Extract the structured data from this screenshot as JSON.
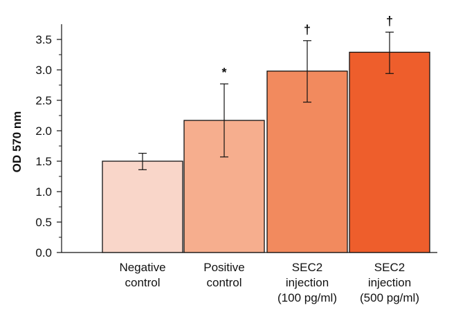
{
  "chart_data": {
    "type": "bar",
    "title": "",
    "xlabel": "",
    "ylabel": "OD 570 nm",
    "ylim": [
      0,
      3.75
    ],
    "yticks": [
      "0.0",
      "0.5",
      "1.0",
      "1.5",
      "2.0",
      "2.5",
      "3.0",
      "3.5"
    ],
    "grid": false,
    "legend": "none",
    "categories": [
      [
        "Negative",
        "control"
      ],
      [
        "Positive",
        "control"
      ],
      [
        "SEC2",
        "injection",
        "(100 pg/ml)"
      ],
      [
        "SEC2",
        "injection",
        "(500 pg/ml)"
      ]
    ],
    "values": [
      1.5,
      2.17,
      2.98,
      3.29
    ],
    "error_low": [
      1.36,
      1.57,
      2.47,
      2.94
    ],
    "error_high": [
      1.63,
      2.77,
      3.48,
      3.62
    ],
    "significance": [
      "",
      "*",
      "†",
      "†"
    ],
    "colors": [
      "#F9D6C9",
      "#F6AE8E",
      "#F28A5E",
      "#EE5E2C"
    ],
    "edge_color": "#111111"
  }
}
